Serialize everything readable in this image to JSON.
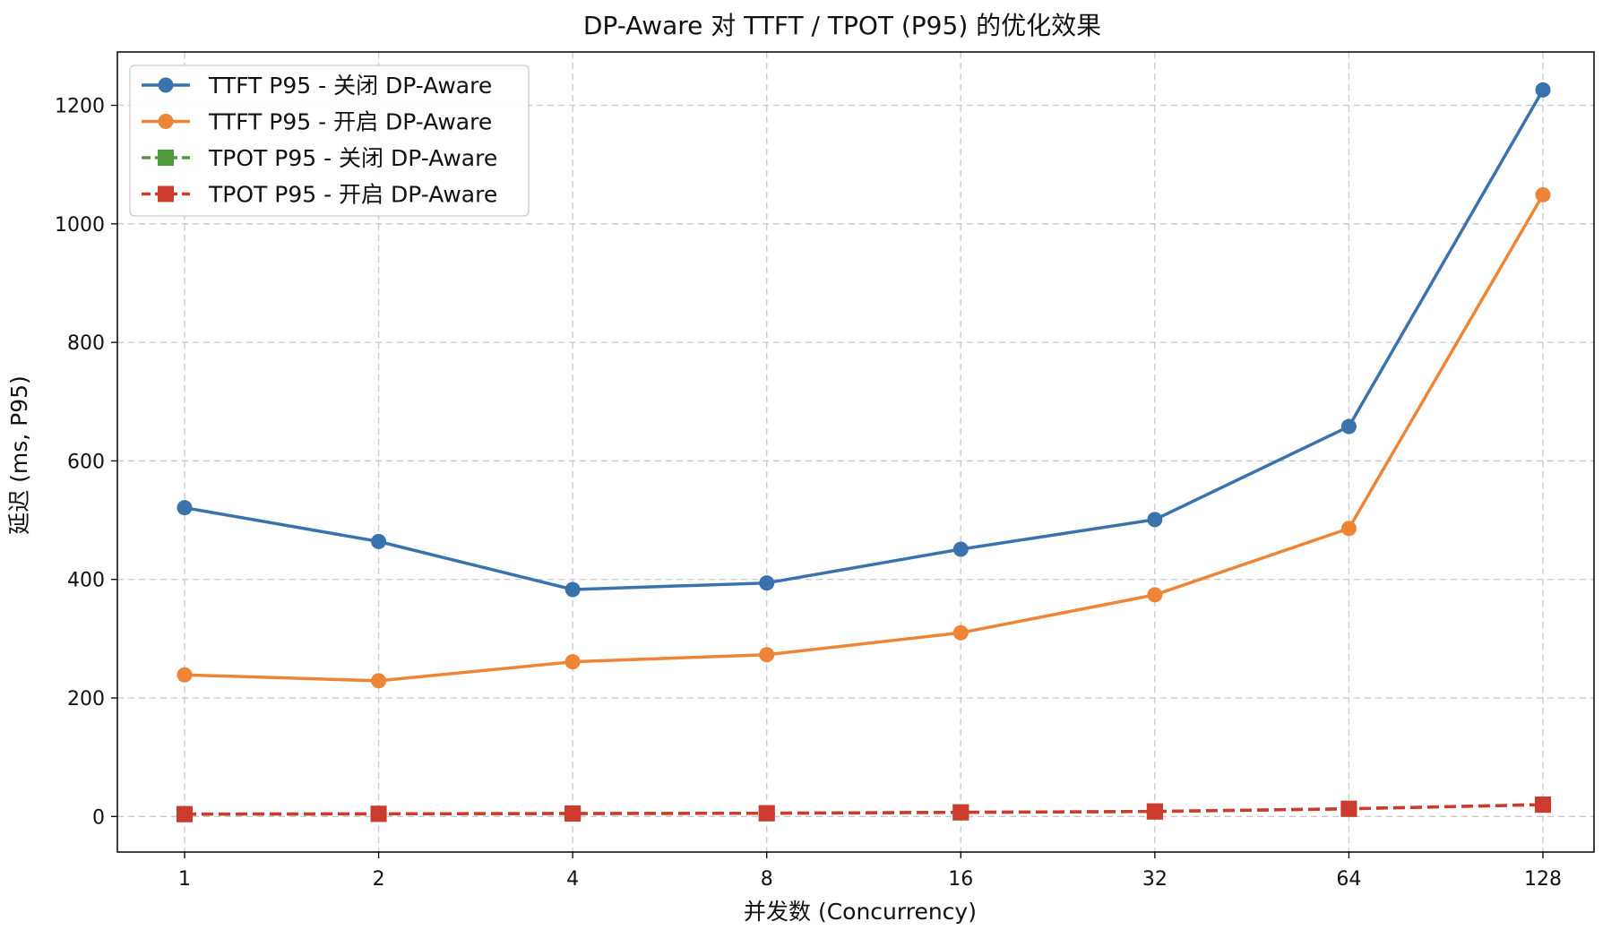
{
  "chart_data": {
    "type": "line",
    "title": "DP-Aware 对 TTFT / TPOT (P95) 的优化效果",
    "xlabel": "并发数 (Concurrency)",
    "ylabel": "延迟 (ms, P95)",
    "categories": [
      "1",
      "2",
      "4",
      "8",
      "16",
      "32",
      "64",
      "128"
    ],
    "ylim": [
      -60,
      1290
    ],
    "yticks": [
      0,
      200,
      400,
      600,
      800,
      1000,
      1200
    ],
    "grid": true,
    "legend_position": "top-left",
    "series": [
      {
        "name": "TTFT P95 - 关闭 DP-Aware",
        "color": "#3a72ae",
        "marker": "circle",
        "dash": "solid",
        "values": [
          521,
          464,
          383,
          394,
          451,
          501,
          658,
          1226
        ]
      },
      {
        "name": "TTFT P95 - 开启 DP-Aware",
        "color": "#ee8536",
        "marker": "circle",
        "dash": "solid",
        "values": [
          239,
          229,
          261,
          273,
          310,
          374,
          486,
          1049
        ]
      },
      {
        "name": "TPOT P95 - 关闭 DP-Aware",
        "color": "#4f9c3f",
        "marker": "square",
        "dash": "dashed",
        "values": [
          4,
          4.5,
          5,
          5.5,
          7,
          8.5,
          13,
          20
        ]
      },
      {
        "name": "TPOT P95 - 开启 DP-Aware",
        "color": "#cc3b2e",
        "marker": "square",
        "dash": "dashed",
        "values": [
          4,
          4.5,
          5,
          5.5,
          7,
          8.5,
          13,
          20
        ]
      }
    ]
  }
}
